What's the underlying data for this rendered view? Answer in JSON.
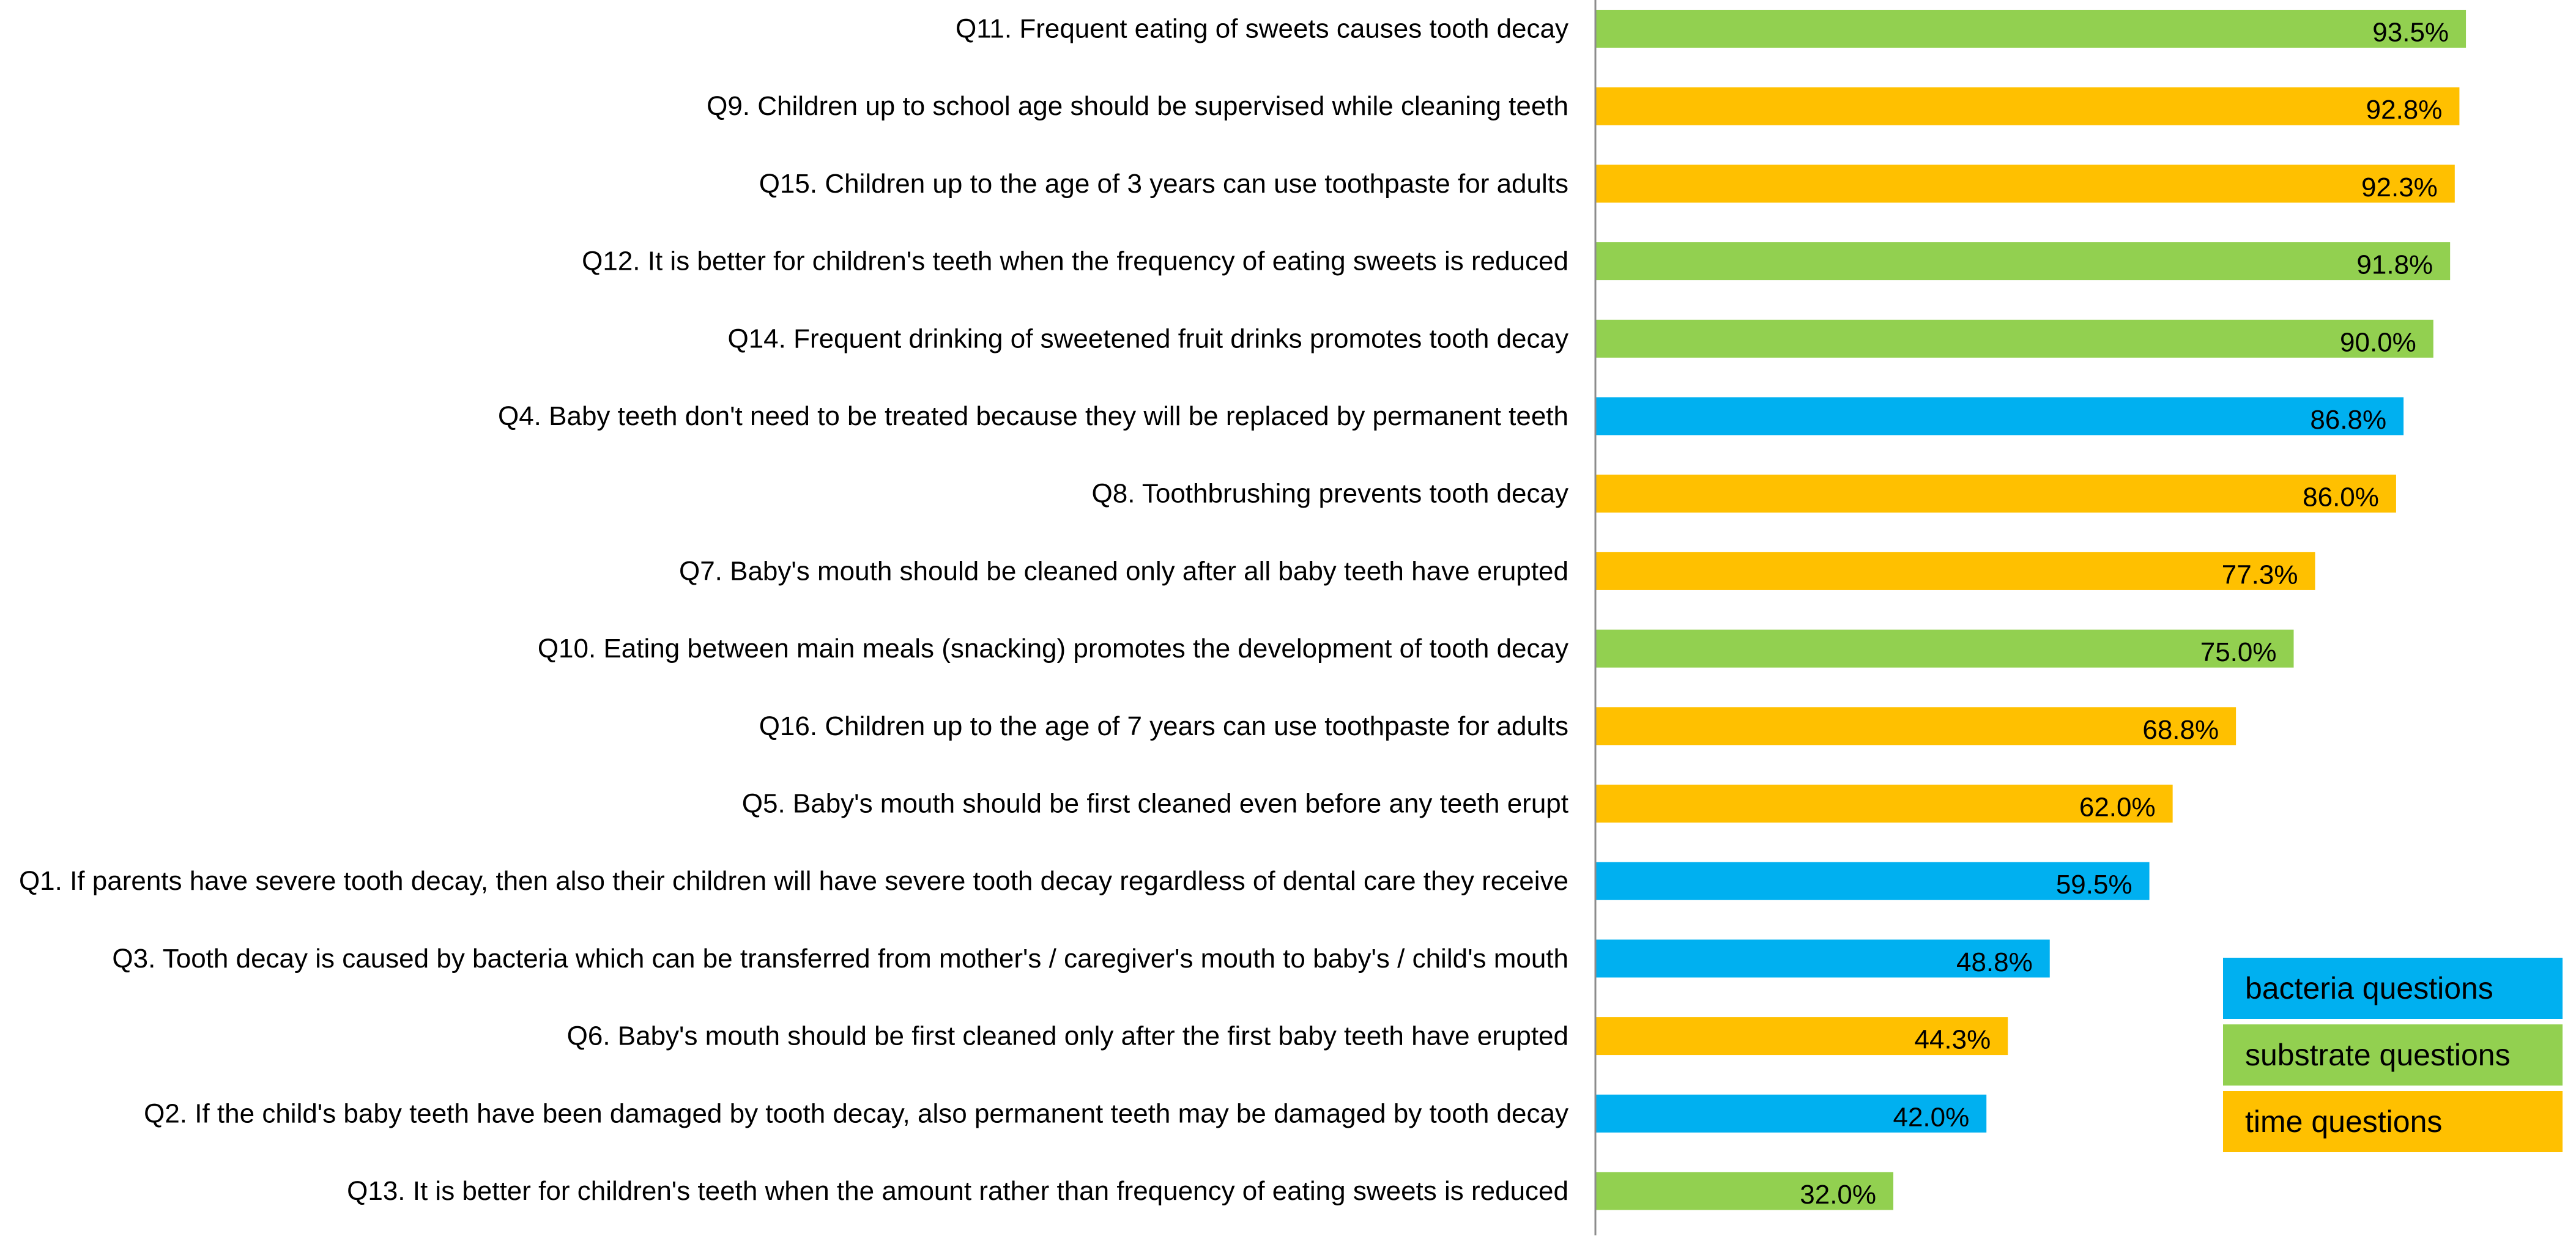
{
  "chart_data": {
    "type": "bar",
    "orientation": "horizontal",
    "categories": [
      "Q11. Frequent eating of sweets causes tooth decay",
      "Q9. Children up to school age should be supervised while cleaning teeth",
      "Q15. Children up to the age of 3 years can use toothpaste for adults",
      "Q12. It is better for children's teeth when the frequency of eating sweets is reduced",
      "Q14. Frequent drinking of sweetened fruit drinks promotes tooth decay",
      "Q4. Baby teeth don't need to be treated because they will be replaced by permanent teeth",
      "Q8. Toothbrushing prevents tooth decay",
      "Q7. Baby's mouth should be cleaned only after all baby teeth have erupted",
      "Q10. Eating between main meals (snacking) promotes the development of tooth decay",
      "Q16. Children up to the age of 7 years can use toothpaste for adults",
      "Q5. Baby's mouth should be first cleaned even before any teeth erupt",
      "Q1. If parents have severe tooth decay, then also their children will have severe tooth decay regardless of dental care they receive",
      "Q3. Tooth decay is caused by bacteria which can be transferred from mother's / caregiver's  mouth to baby's / child's mouth",
      "Q6. Baby's mouth should be first cleaned only after the first baby teeth have erupted",
      "Q2. If the child's baby teeth have been damaged by tooth decay, also permanent teeth may be damaged by tooth decay",
      "Q13. It is better for children's teeth when the amount rather than frequency of eating sweets is reduced"
    ],
    "values": [
      93.5,
      92.8,
      92.3,
      91.8,
      90.0,
      86.8,
      86.0,
      77.3,
      75.0,
      68.8,
      62.0,
      59.5,
      48.8,
      44.3,
      42.0,
      32.0
    ],
    "value_labels": [
      "93.5%",
      "92.8%",
      "92.3%",
      "91.8%",
      "90.0%",
      "86.8%",
      "86.0%",
      "77.3%",
      "75.0%",
      "68.8%",
      "62.0%",
      "59.5%",
      "48.8%",
      "44.3%",
      "42.0%",
      "32.0%"
    ],
    "groups": [
      "substrate",
      "time",
      "time",
      "substrate",
      "substrate",
      "bacteria",
      "time",
      "time",
      "substrate",
      "time",
      "time",
      "bacteria",
      "bacteria",
      "time",
      "bacteria",
      "substrate"
    ],
    "group_colors": {
      "bacteria": "#00B0F0",
      "substrate": "#92D050",
      "time": "#FFC000"
    },
    "legend": [
      {
        "key": "bacteria",
        "label": "bacteria questions"
      },
      {
        "key": "substrate",
        "label": "substrate questions"
      },
      {
        "key": "time",
        "label": "time questions"
      }
    ],
    "xlim": [
      0,
      100
    ],
    "title": "",
    "xlabel": "",
    "ylabel": "",
    "grid": false,
    "legend_position": "bottom-right"
  }
}
